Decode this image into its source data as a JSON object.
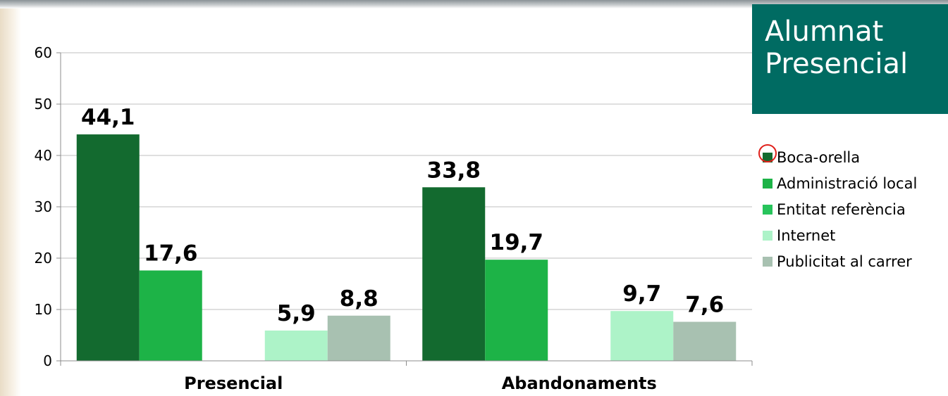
{
  "title_box": {
    "line1": "Alumnat",
    "line2": "Presencial",
    "color": "#006b62"
  },
  "chart_data": {
    "type": "bar",
    "categories": [
      "Presencial",
      "Abandonaments"
    ],
    "series": [
      {
        "name": "Boca-orella",
        "color": "#136a2f",
        "values": [
          44.1,
          33.8
        ]
      },
      {
        "name": "Administració local",
        "color": "#1db347",
        "values": [
          17.6,
          19.7
        ]
      },
      {
        "name": "Entitat referència",
        "color": "#27c45b",
        "values": [
          null,
          null
        ]
      },
      {
        "name": "Internet",
        "color": "#adf3c8",
        "values": [
          5.9,
          9.7
        ]
      },
      {
        "name": "Publicitat al carrer",
        "color": "#a8c1b1",
        "values": [
          8.8,
          7.6
        ]
      }
    ],
    "data_labels": [
      [
        "44,1",
        "33,8"
      ],
      [
        "17,6",
        "19,7"
      ],
      [
        null,
        null
      ],
      [
        "5,9",
        "9,7"
      ],
      [
        "8,8",
        "7,6"
      ]
    ],
    "y_ticks": [
      "0",
      "10",
      "20",
      "30",
      "40",
      "50",
      "60"
    ],
    "ylim": [
      0,
      60
    ],
    "legend_position": "right",
    "grid": true
  }
}
